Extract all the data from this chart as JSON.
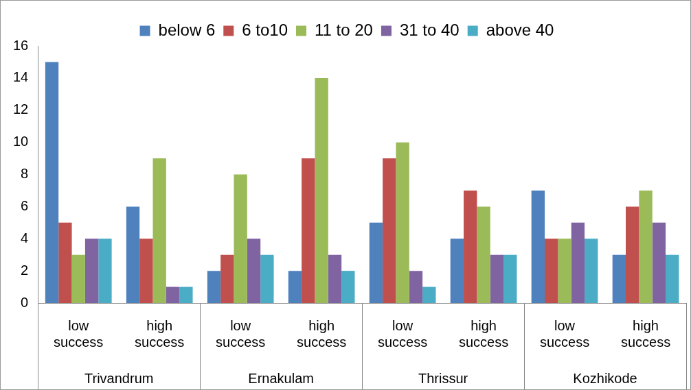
{
  "chart_data": {
    "type": "bar",
    "categories": [
      "low success",
      "high success",
      "low success",
      "high success",
      "low success",
      "high success",
      "low success",
      "high success"
    ],
    "series": [
      {
        "name": "below 6",
        "color": "#4f81bd",
        "values": [
          15,
          6,
          2,
          2,
          5,
          4,
          7,
          3
        ]
      },
      {
        "name": "6 to10",
        "color": "#c0504d",
        "values": [
          5,
          4,
          3,
          9,
          9,
          7,
          4,
          6
        ]
      },
      {
        "name": "11 to 20",
        "color": "#9bbb59",
        "values": [
          3,
          9,
          8,
          14,
          10,
          6,
          4,
          7
        ]
      },
      {
        "name": "31 to 40",
        "color": "#8064a2",
        "values": [
          4,
          1,
          4,
          3,
          2,
          3,
          5,
          5
        ]
      },
      {
        "name": "above 40",
        "color": "#4bacc6",
        "values": [
          4,
          1,
          3,
          2,
          1,
          3,
          4,
          3
        ]
      }
    ],
    "annotations": [
      "Trivandrum",
      "Ernakulam",
      "Thrissur",
      "Kozhikode"
    ],
    "ylim": [
      0,
      16
    ],
    "yticks": [
      0,
      2,
      4,
      6,
      8,
      10,
      12,
      14,
      16
    ],
    "grid": false,
    "legend": "top"
  }
}
